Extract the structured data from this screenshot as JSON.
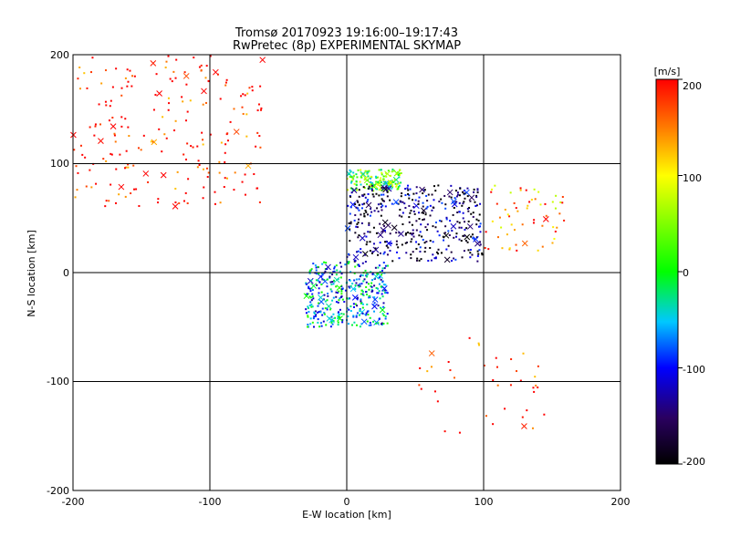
{
  "chart_data": {
    "type": "scatter",
    "title": "Tromsø 20170923 19:16:00–19:17:43",
    "subtitle": "RwPretec (8p) EXPERIMENTAL SKYMAP",
    "xlabel": "E-W location [km]",
    "ylabel": "N-S location [km]",
    "xlim": [
      -200,
      200
    ],
    "ylim": [
      -200,
      200
    ],
    "x_ticks": [
      "-200",
      "-100",
      "0",
      "100",
      "200"
    ],
    "y_ticks": [
      "-200",
      "-100",
      "0",
      "100",
      "200"
    ],
    "grid": true,
    "colorbar": {
      "label": "[m/s]",
      "range": [
        -200,
        200
      ],
      "ticks": [
        "200",
        "100",
        "0",
        "-100",
        "-200"
      ],
      "stops": [
        "#000000",
        "#2a0060",
        "#0000ff",
        "#00c8ff",
        "#00ff00",
        "#ffff00",
        "#ff8000",
        "#ff0000"
      ]
    },
    "point_markers": [
      "dot",
      "x"
    ],
    "clusters": [
      {
        "region": "north-west",
        "x_range": [
          -200,
          -60
        ],
        "y_range": [
          60,
          200
        ],
        "velocity": 200,
        "approx_count": 220
      },
      {
        "region": "north-central",
        "x_range": [
          0,
          40
        ],
        "y_range": [
          75,
          95
        ],
        "velocity": 20,
        "approx_count": 160
      },
      {
        "region": "north-east core",
        "x_range": [
          0,
          100
        ],
        "y_range": [
          10,
          80
        ],
        "velocity": -160,
        "approx_count": 420
      },
      {
        "region": "south-central",
        "x_range": [
          -30,
          30
        ],
        "y_range": [
          -50,
          10
        ],
        "velocity": -60,
        "approx_count": 380
      },
      {
        "region": "east",
        "x_range": [
          100,
          160
        ],
        "y_range": [
          20,
          80
        ],
        "velocity": 150,
        "approx_count": 60
      },
      {
        "region": "south-east",
        "x_range": [
          50,
          150
        ],
        "y_range": [
          -150,
          -60
        ],
        "velocity": 200,
        "approx_count": 40
      }
    ]
  }
}
